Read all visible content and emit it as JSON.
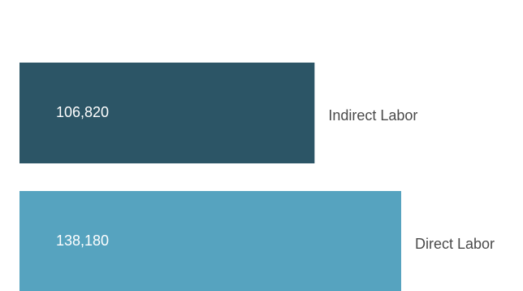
{
  "chart_data": {
    "type": "bar",
    "orientation": "horizontal",
    "categories": [
      "Indirect Labor",
      "Direct Labor"
    ],
    "values": [
      106820,
      138180
    ],
    "value_labels": [
      "106,820",
      "138,180"
    ],
    "bar_colors": [
      "#2c5566",
      "#56a3bf"
    ],
    "label_color": "#4a4a4a",
    "value_label_color": "#ffffff",
    "title": "",
    "xlabel": "",
    "ylabel": "",
    "grid": false,
    "legend": "none"
  }
}
